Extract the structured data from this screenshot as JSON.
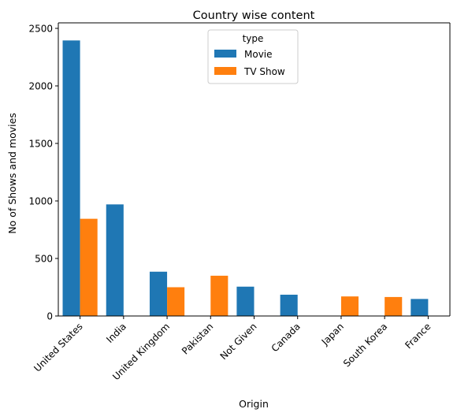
{
  "chart_data": {
    "type": "bar",
    "title": "Country wise content",
    "xlabel": "Origin",
    "ylabel": "No of Shows and movies",
    "categories": [
      "United States",
      "India",
      "United Kingdom",
      "Pakistan",
      "Not Given",
      "Canada",
      "Japan",
      "South Korea",
      "France"
    ],
    "series": [
      {
        "name": "Movie",
        "color": "#1f77b4",
        "values": [
          2395,
          970,
          385,
          null,
          255,
          185,
          null,
          null,
          148
        ]
      },
      {
        "name": "TV Show",
        "color": "#ff7f0e",
        "values": [
          845,
          null,
          250,
          350,
          null,
          null,
          170,
          165,
          null
        ]
      }
    ],
    "ylim": [
      0,
      2500
    ],
    "yticks": [
      0,
      500,
      1000,
      1500,
      2000,
      2500
    ],
    "grid": false,
    "legend": {
      "title": "type",
      "placement": "top-center"
    }
  }
}
